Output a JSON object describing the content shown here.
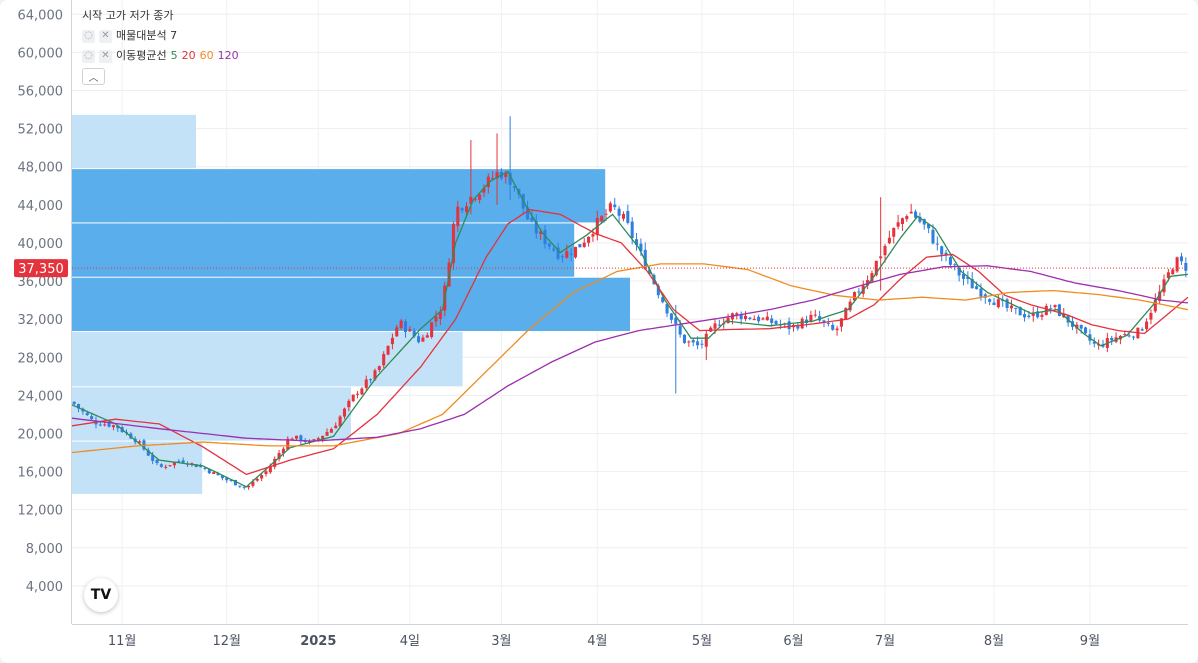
{
  "legend": {
    "ohlc_label": "시작 고가 저가 종가",
    "volume_profile_label": "매물대분석 7",
    "ma_label": "이동평균선",
    "ma_periods": [
      "5",
      "20",
      "60",
      "120"
    ],
    "collapse_icon": "chevron-up-icon",
    "visibility_icon": "eye-off-icon",
    "remove_icon": "close-icon"
  },
  "logo_text": "TV",
  "colors": {
    "up": "#e5323c",
    "down": "#2f7fe0",
    "ma5": "#2e8b57",
    "ma20": "#e5323c",
    "ma60": "#f08c1e",
    "ma120": "#9b2fae",
    "volume_profile_dark": "#5aaeec",
    "volume_profile_light": "#c3e2f8",
    "price_tag": "#e5323c"
  },
  "chart_data": {
    "type": "candlestick",
    "y_axis": {
      "ticks": [
        4000,
        8000,
        12000,
        16000,
        20000,
        24000,
        28000,
        32000,
        36000,
        40000,
        44000,
        48000,
        52000,
        56000,
        60000,
        64000
      ],
      "tick_labels": [
        "4,000",
        "8,000",
        "12,000",
        "16,000",
        "20,000",
        "24,000",
        "28,000",
        "32,000",
        "36,000",
        "40,000",
        "44,000",
        "48,000",
        "52,000",
        "56,000",
        "60,000",
        "64,000"
      ],
      "range": [
        0,
        65500
      ]
    },
    "x_axis": {
      "labels": [
        "11월",
        "12월",
        "2025",
        "4일",
        "3월",
        "4월",
        "5월",
        "6월",
        "7월",
        "8월",
        "9월"
      ],
      "bold": [
        false,
        false,
        true,
        false,
        false,
        false,
        false,
        false,
        false,
        false,
        false
      ],
      "label_index": [
        11,
        35,
        56,
        77,
        98,
        120,
        144,
        165,
        186,
        211,
        233
      ]
    },
    "bar_count": 256,
    "current_price": 37350,
    "current_price_label": "37,350",
    "close_anchors": [
      [
        0,
        23300
      ],
      [
        5,
        21200
      ],
      [
        10,
        20800
      ],
      [
        15,
        19200
      ],
      [
        20,
        16400
      ],
      [
        25,
        17200
      ],
      [
        30,
        16400
      ],
      [
        35,
        15200
      ],
      [
        40,
        14300
      ],
      [
        45,
        16200
      ],
      [
        50,
        19700
      ],
      [
        55,
        19000
      ],
      [
        60,
        20700
      ],
      [
        65,
        24200
      ],
      [
        70,
        26500
      ],
      [
        75,
        31700
      ],
      [
        80,
        29600
      ],
      [
        85,
        33500
      ],
      [
        88,
        43500
      ],
      [
        92,
        45000
      ],
      [
        95,
        46200
      ],
      [
        98,
        47500
      ],
      [
        101,
        46500
      ],
      [
        105,
        42000
      ],
      [
        108,
        40500
      ],
      [
        112,
        38700
      ],
      [
        116,
        39500
      ],
      [
        120,
        41800
      ],
      [
        124,
        43800
      ],
      [
        127,
        42200
      ],
      [
        130,
        39200
      ],
      [
        135,
        34400
      ],
      [
        140,
        29800
      ],
      [
        144,
        29100
      ],
      [
        148,
        31600
      ],
      [
        152,
        32500
      ],
      [
        158,
        32000
      ],
      [
        165,
        31100
      ],
      [
        170,
        32300
      ],
      [
        175,
        30600
      ],
      [
        180,
        34800
      ],
      [
        183,
        36700
      ],
      [
        188,
        41000
      ],
      [
        192,
        43500
      ],
      [
        196,
        41500
      ],
      [
        200,
        38500
      ],
      [
        205,
        36000
      ],
      [
        210,
        34400
      ],
      [
        215,
        33000
      ],
      [
        220,
        32300
      ],
      [
        225,
        33300
      ],
      [
        230,
        31200
      ],
      [
        235,
        29100
      ],
      [
        240,
        30200
      ],
      [
        245,
        30700
      ],
      [
        250,
        35200
      ],
      [
        253,
        38200
      ],
      [
        256,
        37350
      ]
    ],
    "wicks": [
      {
        "i": 100,
        "high": 53300,
        "low": 44500
      },
      {
        "i": 97,
        "high": 51500,
        "low": 44000
      },
      {
        "i": 138,
        "high": 33500,
        "low": 24200
      },
      {
        "i": 145,
        "high": 30800,
        "low": 27700
      },
      {
        "i": 185,
        "high": 44800,
        "low": 35000
      },
      {
        "i": 91,
        "high": 50800,
        "low": 43000
      }
    ],
    "moving_averages": [
      {
        "period": "5",
        "anchors": [
          [
            0,
            23000
          ],
          [
            10,
            21000
          ],
          [
            20,
            17200
          ],
          [
            30,
            16600
          ],
          [
            40,
            14400
          ],
          [
            50,
            18500
          ],
          [
            60,
            19700
          ],
          [
            70,
            26000
          ],
          [
            80,
            31000
          ],
          [
            85,
            33000
          ],
          [
            88,
            40000
          ],
          [
            92,
            44500
          ],
          [
            96,
            46500
          ],
          [
            100,
            47500
          ],
          [
            104,
            44000
          ],
          [
            108,
            41000
          ],
          [
            112,
            39000
          ],
          [
            118,
            40800
          ],
          [
            124,
            43000
          ],
          [
            130,
            39500
          ],
          [
            136,
            34000
          ],
          [
            142,
            30000
          ],
          [
            146,
            30000
          ],
          [
            150,
            31800
          ],
          [
            160,
            31300
          ],
          [
            170,
            31800
          ],
          [
            178,
            33000
          ],
          [
            184,
            36500
          ],
          [
            190,
            40500
          ],
          [
            194,
            42800
          ],
          [
            198,
            41500
          ],
          [
            204,
            37000
          ],
          [
            210,
            34800
          ],
          [
            220,
            32600
          ],
          [
            226,
            33000
          ],
          [
            232,
            30500
          ],
          [
            236,
            29200
          ],
          [
            242,
            30300
          ],
          [
            248,
            33500
          ],
          [
            252,
            36500
          ],
          [
            256,
            36700
          ]
        ]
      },
      {
        "period": "20",
        "anchors": [
          [
            0,
            20800
          ],
          [
            10,
            21500
          ],
          [
            20,
            21000
          ],
          [
            30,
            18600
          ],
          [
            40,
            15700
          ],
          [
            50,
            17200
          ],
          [
            60,
            18400
          ],
          [
            70,
            22000
          ],
          [
            80,
            27000
          ],
          [
            88,
            32000
          ],
          [
            95,
            38500
          ],
          [
            100,
            42000
          ],
          [
            105,
            43500
          ],
          [
            112,
            43000
          ],
          [
            120,
            41000
          ],
          [
            126,
            40000
          ],
          [
            132,
            37000
          ],
          [
            138,
            33000
          ],
          [
            144,
            30800
          ],
          [
            150,
            30900
          ],
          [
            160,
            31000
          ],
          [
            170,
            31500
          ],
          [
            178,
            32000
          ],
          [
            184,
            33500
          ],
          [
            190,
            36200
          ],
          [
            196,
            38500
          ],
          [
            202,
            38800
          ],
          [
            208,
            37000
          ],
          [
            214,
            34500
          ],
          [
            220,
            33500
          ],
          [
            228,
            32500
          ],
          [
            234,
            31400
          ],
          [
            240,
            30800
          ],
          [
            246,
            30500
          ],
          [
            250,
            32000
          ],
          [
            256,
            34300
          ]
        ]
      },
      {
        "period": "60",
        "anchors": [
          [
            0,
            18000
          ],
          [
            15,
            18700
          ],
          [
            30,
            19100
          ],
          [
            45,
            18700
          ],
          [
            60,
            18700
          ],
          [
            75,
            20000
          ],
          [
            85,
            22000
          ],
          [
            95,
            26500
          ],
          [
            105,
            31000
          ],
          [
            115,
            34800
          ],
          [
            125,
            37000
          ],
          [
            135,
            37800
          ],
          [
            145,
            37800
          ],
          [
            155,
            37200
          ],
          [
            165,
            35500
          ],
          [
            175,
            34500
          ],
          [
            185,
            34000
          ],
          [
            195,
            34300
          ],
          [
            205,
            34000
          ],
          [
            215,
            34800
          ],
          [
            225,
            35000
          ],
          [
            235,
            34600
          ],
          [
            245,
            34000
          ],
          [
            256,
            33000
          ]
        ]
      },
      {
        "period": "120",
        "anchors": [
          [
            0,
            21600
          ],
          [
            20,
            20500
          ],
          [
            40,
            19500
          ],
          [
            55,
            19200
          ],
          [
            70,
            19600
          ],
          [
            80,
            20500
          ],
          [
            90,
            22000
          ],
          [
            100,
            25000
          ],
          [
            110,
            27500
          ],
          [
            120,
            29600
          ],
          [
            130,
            30800
          ],
          [
            140,
            31500
          ],
          [
            150,
            32200
          ],
          [
            160,
            33000
          ],
          [
            170,
            34000
          ],
          [
            180,
            35400
          ],
          [
            190,
            36700
          ],
          [
            200,
            37500
          ],
          [
            210,
            37600
          ],
          [
            220,
            37000
          ],
          [
            230,
            35800
          ],
          [
            240,
            35000
          ],
          [
            250,
            34000
          ],
          [
            256,
            33700
          ]
        ]
      }
    ],
    "volume_profile": [
      {
        "low": 13600,
        "high": 19200,
        "weight": 0.21,
        "style": "light"
      },
      {
        "low": 19200,
        "high": 24900,
        "weight": 0.45,
        "style": "light"
      },
      {
        "low": 24900,
        "high": 30700,
        "weight": 0.63,
        "style": "light"
      },
      {
        "low": 30700,
        "high": 36400,
        "weight": 0.9,
        "style": "dark"
      },
      {
        "low": 36400,
        "high": 42100,
        "weight": 0.81,
        "style": "dark"
      },
      {
        "low": 42100,
        "high": 47800,
        "weight": 0.86,
        "style": "dark"
      },
      {
        "low": 47800,
        "high": 53500,
        "weight": 0.2,
        "style": "light"
      }
    ]
  }
}
